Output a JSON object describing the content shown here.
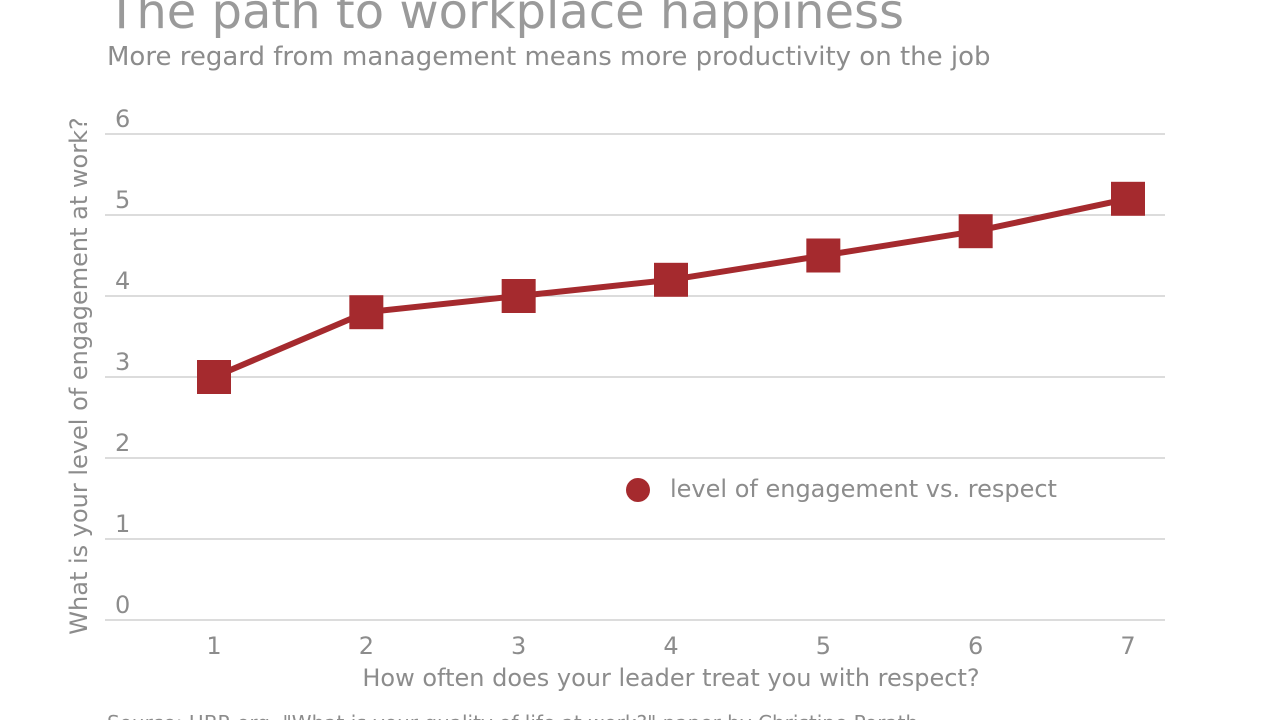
{
  "chart_data": {
    "type": "line",
    "title": "The path to workplace happiness",
    "subtitle": "More regard from management means more productivity on the job",
    "xlabel": "How often does your leader treat you with respect?",
    "ylabel": "What is your level of engagement at work?",
    "x": [
      1,
      2,
      3,
      4,
      5,
      6,
      7
    ],
    "x_tick_labels": [
      "1",
      "2",
      "3",
      "4",
      "5",
      "6",
      "7"
    ],
    "y_tick_labels": [
      "0",
      "1",
      "2",
      "3",
      "4",
      "5",
      "6"
    ],
    "ylim": [
      0,
      6
    ],
    "grid": true,
    "legend_position": "center-right",
    "series": [
      {
        "name": "level of engagement vs. respect",
        "values": [
          3.0,
          3.8,
          4.0,
          4.2,
          4.5,
          4.8,
          5.2
        ],
        "color": "#a52a2e",
        "marker": "square"
      }
    ],
    "source": "Source: HBR.org, \"What is your quality of life at work?\" paper by Christine Porath"
  }
}
